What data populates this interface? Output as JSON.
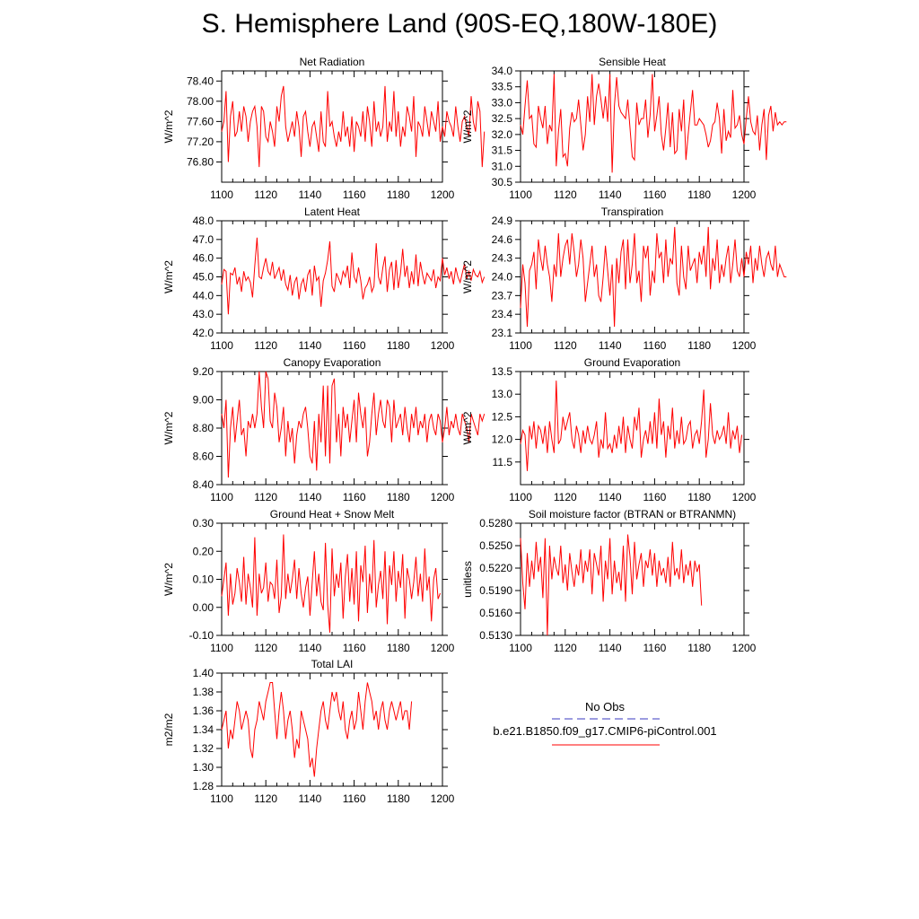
{
  "title": "S. Hemisphere Land (90S-EQ,180W-180E)",
  "legend": {
    "obs_label": "No Obs",
    "obs_color": "#3a3ac0",
    "model_label": "b.e21.B1850.f09_g17.CMIP6-piControl.001",
    "model_color": "#ff0000"
  },
  "chart_data": [
    {
      "type": "line",
      "title": "Net Radiation",
      "ylabel": "W/m^2",
      "xlim": [
        1100,
        1200
      ],
      "ylim": [
        76.4,
        78.6
      ],
      "yticks": [
        "76.80",
        "77.20",
        "77.60",
        "78.00",
        "78.40"
      ],
      "xticks": [
        "1100",
        "1120",
        "1140",
        "1160",
        "1180",
        "1200"
      ],
      "x_start": 1100,
      "x_step": 1,
      "values": [
        77.4,
        77.6,
        78.2,
        76.8,
        77.7,
        78.0,
        77.3,
        77.4,
        77.8,
        77.4,
        77.9,
        77.7,
        77.2,
        77.6,
        77.8,
        77.9,
        77.5,
        76.7,
        77.9,
        77.8,
        77.3,
        77.2,
        77.6,
        77.4,
        77.1,
        77.9,
        77.6,
        78.1,
        78.3,
        77.5,
        77.2,
        77.4,
        77.6,
        77.3,
        77.8,
        77.5,
        76.9,
        77.7,
        77.8,
        77.4,
        77.1,
        77.5,
        77.6,
        77.3,
        77.0,
        77.8,
        77.2,
        77.1,
        78.2,
        77.5,
        77.6,
        77.3,
        77.1,
        77.4,
        77.2,
        77.8,
        77.3,
        77.5,
        77.1,
        77.7,
        77.0,
        77.6,
        77.5,
        77.3,
        77.8,
        77.2,
        77.9,
        77.6,
        77.1,
        78.0,
        77.4,
        77.6,
        77.3,
        77.5,
        78.3,
        77.2,
        77.6,
        77.4,
        78.2,
        77.3,
        77.8,
        77.1,
        77.5,
        77.3,
        77.9,
        77.7,
        77.4,
        78.1,
        76.9,
        77.6,
        77.5,
        77.3,
        77.9,
        77.6,
        77.3,
        77.8,
        77.6,
        77.4,
        78.0,
        77.2,
        77.5,
        77.3,
        77.8,
        77.6,
        77.5,
        77.3,
        77.9,
        77.5,
        77.2,
        77.6,
        77.7,
        77.5,
        77.3,
        78.1,
        77.6,
        77.4,
        78.0,
        77.8,
        76.7,
        77.4
      ]
    },
    {
      "type": "line",
      "title": "Sensible Heat",
      "ylabel": "W/m^2",
      "xlim": [
        1100,
        1200
      ],
      "ylim": [
        30.5,
        34.0
      ],
      "yticks": [
        "30.5",
        "31.0",
        "31.5",
        "32.0",
        "32.5",
        "33.0",
        "33.5",
        "34.0"
      ],
      "xticks": [
        "1100",
        "1120",
        "1140",
        "1160",
        "1180",
        "1200"
      ],
      "x_start": 1100,
      "x_step": 1,
      "values": [
        32.3,
        32.0,
        32.9,
        33.7,
        32.5,
        32.6,
        31.7,
        31.6,
        32.9,
        32.5,
        32.2,
        32.9,
        31.7,
        32.3,
        32.1,
        33.9,
        31.0,
        32.1,
        32.8,
        31.3,
        31.4,
        31.0,
        32.2,
        32.7,
        32.4,
        32.5,
        33.1,
        32.3,
        31.5,
        32.0,
        33.2,
        32.4,
        33.9,
        32.3,
        33.2,
        33.6,
        33.1,
        32.5,
        33.2,
        32.4,
        33.9,
        30.8,
        32.9,
        33.8,
        32.9,
        32.7,
        32.6,
        32.5,
        33.1,
        32.2,
        31.3,
        31.2,
        33.0,
        32.3,
        32.5,
        32.5,
        33.1,
        31.9,
        32.6,
        33.9,
        32.1,
        32.6,
        33.2,
        32.0,
        31.5,
        32.2,
        33.0,
        31.6,
        32.7,
        31.4,
        31.5,
        32.8,
        32.1,
        33.1,
        31.2,
        32.0,
        32.7,
        33.4,
        32.3,
        32.3,
        32.5,
        32.4,
        32.3,
        32.0,
        31.6,
        31.8,
        32.3,
        32.4,
        33.0,
        32.5,
        31.4,
        32.8,
        31.8,
        32.1,
        31.9,
        33.4,
        32.2,
        32.3,
        32.6,
        32.0,
        31.7,
        32.5,
        33.2,
        32.4,
        32.1,
        32.0,
        32.6,
        31.5,
        32.3,
        32.8,
        31.2,
        32.6,
        32.9,
        32.1,
        32.7,
        32.3,
        32.4,
        32.3,
        32.4,
        32.4
      ]
    },
    {
      "type": "line",
      "title": "Latent Heat",
      "ylabel": "W/m^2",
      "xlim": [
        1100,
        1200
      ],
      "ylim": [
        42.0,
        48.0
      ],
      "yticks": [
        "42.0",
        "43.0",
        "44.0",
        "45.0",
        "46.0",
        "47.0",
        "48.0"
      ],
      "xticks": [
        "1100",
        "1120",
        "1140",
        "1160",
        "1180",
        "1200"
      ],
      "x_start": 1100,
      "x_step": 1,
      "values": [
        44.6,
        45.4,
        45.3,
        43.0,
        45.2,
        45.1,
        45.5,
        44.6,
        45.0,
        44.2,
        45.3,
        44.8,
        45.0,
        44.7,
        43.9,
        45.6,
        47.1,
        45.0,
        44.9,
        45.5,
        46.0,
        45.3,
        45.1,
        45.8,
        44.9,
        45.2,
        45.5,
        44.8,
        45.4,
        44.6,
        44.3,
        45.1,
        44.0,
        44.7,
        45.0,
        43.8,
        44.6,
        44.9,
        44.2,
        45.1,
        45.4,
        44.0,
        45.6,
        44.8,
        45.0,
        43.4,
        44.8,
        45.2,
        45.9,
        46.9,
        44.5,
        44.2,
        45.2,
        44.9,
        44.6,
        45.3,
        45.0,
        45.6,
        44.4,
        46.3,
        45.0,
        44.7,
        45.5,
        44.8,
        43.8,
        44.4,
        44.6,
        45.0,
        44.2,
        44.5,
        46.8,
        45.0,
        44.6,
        45.5,
        46.1,
        44.2,
        45.4,
        45.8,
        44.3,
        45.9,
        44.4,
        45.2,
        46.5,
        45.0,
        45.6,
        44.4,
        45.3,
        44.6,
        46.2,
        44.5,
        45.8,
        45.1,
        44.6,
        45.2,
        45.0,
        44.8,
        45.4,
        44.4,
        45.0,
        44.8,
        46.0,
        45.1,
        45.5,
        44.9,
        45.3,
        44.6,
        45.5,
        45.0,
        44.7,
        45.2,
        45.7,
        44.9,
        45.3,
        44.8,
        45.4,
        45.1,
        45.0,
        45.3,
        44.7,
        45.0
      ]
    },
    {
      "type": "line",
      "title": "Transpiration",
      "ylabel": "W/m^2",
      "xlim": [
        1100,
        1200
      ],
      "ylim": [
        23.1,
        24.9
      ],
      "yticks": [
        "23.1",
        "23.4",
        "23.7",
        "24.0",
        "24.3",
        "24.6",
        "24.9"
      ],
      "xticks": [
        "1100",
        "1120",
        "1140",
        "1160",
        "1180",
        "1200"
      ],
      "x_start": 1100,
      "x_step": 1,
      "values": [
        23.5,
        24.2,
        23.9,
        23.2,
        24.1,
        24.2,
        24.4,
        23.8,
        24.6,
        24.3,
        24.1,
        24.5,
        24.2,
        24.0,
        23.6,
        24.2,
        24.0,
        24.7,
        24.0,
        24.3,
        24.5,
        24.6,
        24.2,
        24.7,
        24.4,
        24.0,
        24.2,
        24.6,
        24.3,
        23.6,
        23.9,
        24.2,
        24.5,
        24.0,
        24.2,
        23.7,
        23.6,
        24.0,
        24.5,
        24.1,
        23.7,
        24.2,
        23.2,
        24.3,
        23.9,
        24.4,
        24.6,
        23.8,
        24.6,
        23.9,
        24.2,
        24.7,
        23.9,
        24.1,
        23.6,
        24.5,
        24.3,
        24.5,
        23.7,
        24.1,
        23.9,
        24.7,
        24.3,
        24.4,
        23.9,
        24.6,
        24.0,
        24.3,
        24.2,
        24.8,
        23.9,
        23.7,
        24.5,
        24.0,
        23.8,
        24.5,
        24.1,
        24.2,
        24.3,
        23.9,
        24.4,
        24.2,
        24.5,
        24.0,
        24.8,
        23.8,
        24.3,
        24.1,
        24.6,
        23.9,
        24.2,
        24.0,
        24.3,
        24.5,
        23.9,
        24.2,
        24.6,
        24.1,
        24.0,
        24.3,
        24.0,
        24.4,
        24.2,
        24.5,
        23.9,
        24.3,
        24.1,
        24.5,
        24.2,
        24.0,
        24.3,
        24.4,
        24.2,
        24.1,
        24.5,
        24.0,
        24.2,
        24.1,
        24.0,
        24.0
      ]
    },
    {
      "type": "line",
      "title": "Canopy Evaporation",
      "ylabel": "W/m^2",
      "xlim": [
        1100,
        1200
      ],
      "ylim": [
        8.4,
        9.2
      ],
      "yticks": [
        "8.40",
        "8.60",
        "8.80",
        "9.00",
        "9.20"
      ],
      "xticks": [
        "1100",
        "1120",
        "1140",
        "1160",
        "1180",
        "1200"
      ],
      "x_start": 1100,
      "x_step": 1,
      "values": [
        8.9,
        8.8,
        9.0,
        8.45,
        8.8,
        8.95,
        8.7,
        8.85,
        9.0,
        8.75,
        8.8,
        8.6,
        8.85,
        8.8,
        8.9,
        8.8,
        8.9,
        9.2,
        8.95,
        8.8,
        9.2,
        9.15,
        8.85,
        8.8,
        9.05,
        8.95,
        8.7,
        8.8,
        8.95,
        8.6,
        8.85,
        8.7,
        8.8,
        8.55,
        8.75,
        8.85,
        8.8,
        8.9,
        8.95,
        8.8,
        8.6,
        8.55,
        8.85,
        8.5,
        8.9,
        8.7,
        9.1,
        8.6,
        9.1,
        8.55,
        9.1,
        9.15,
        8.7,
        8.9,
        8.6,
        8.95,
        8.8,
        8.9,
        8.7,
        8.85,
        9.0,
        8.7,
        9.05,
        8.9,
        8.8,
        8.95,
        8.6,
        8.7,
        8.9,
        9.05,
        8.75,
        8.9,
        9.0,
        8.85,
        8.8,
        9.0,
        8.95,
        8.7,
        9.0,
        8.8,
        8.85,
        8.9,
        8.75,
        8.95,
        8.8,
        8.7,
        8.9,
        8.8,
        8.95,
        8.75,
        8.85,
        8.8,
        8.9,
        8.7,
        8.85,
        8.9,
        8.8,
        8.75,
        8.9,
        8.85,
        8.7,
        8.8,
        8.95,
        8.75,
        8.85,
        8.8,
        8.9,
        8.8,
        8.75,
        8.9,
        8.85,
        8.8,
        8.7,
        8.9,
        8.85,
        8.8,
        8.75,
        8.9,
        8.85,
        8.9
      ]
    },
    {
      "type": "line",
      "title": "Ground Evaporation",
      "ylabel": "W/m^2",
      "xlim": [
        1100,
        1200
      ],
      "ylim": [
        11.0,
        13.5
      ],
      "yticks": [
        "11.5",
        "12.0",
        "12.5",
        "13.0",
        "13.5"
      ],
      "xticks": [
        "1100",
        "1120",
        "1140",
        "1160",
        "1180",
        "1200"
      ],
      "x_start": 1100,
      "x_step": 1,
      "values": [
        11.9,
        12.2,
        12.1,
        11.3,
        12.3,
        12.0,
        12.4,
        11.8,
        12.3,
        12.2,
        11.9,
        12.3,
        11.7,
        12.4,
        12.0,
        11.7,
        13.3,
        11.9,
        12.0,
        12.5,
        12.2,
        12.4,
        12.6,
        12.0,
        11.8,
        12.3,
        12.1,
        11.7,
        12.2,
        11.9,
        12.3,
        12.0,
        11.9,
        12.1,
        12.4,
        11.6,
        12.0,
        11.8,
        12.6,
        11.8,
        11.9,
        11.7,
        12.1,
        11.8,
        12.3,
        11.9,
        12.5,
        11.7,
        12.3,
        12.0,
        11.8,
        12.5,
        12.2,
        12.7,
        11.6,
        12.0,
        12.2,
        11.9,
        12.4,
        11.9,
        12.6,
        11.8,
        12.9,
        12.1,
        12.4,
        11.6,
        12.3,
        12.0,
        12.7,
        11.8,
        12.2,
        11.9,
        12.5,
        11.9,
        12.0,
        12.3,
        12.4,
        11.8,
        12.1,
        12.2,
        11.9,
        12.4,
        13.1,
        11.6,
        12.0,
        12.8,
        12.1,
        11.9,
        12.2,
        12.0,
        12.1,
        12.3,
        11.9,
        12.6,
        11.8,
        12.2,
        12.0,
        12.3,
        11.7,
        12.1
      ]
    },
    {
      "type": "line",
      "title": "Ground Heat + Snow Melt",
      "ylabel": "W/m^2",
      "xlim": [
        1100,
        1200
      ],
      "ylim": [
        -0.1,
        0.3
      ],
      "yticks": [
        "-0.10",
        "0.00",
        "0.10",
        "0.20",
        "0.30"
      ],
      "xticks": [
        "1100",
        "1120",
        "1140",
        "1160",
        "1180",
        "1200"
      ],
      "x_start": 1100,
      "x_step": 1,
      "values": [
        0.04,
        0.1,
        0.16,
        -0.03,
        0.12,
        0.01,
        0.05,
        0.14,
        0.09,
        0.02,
        0.18,
        0.01,
        0.12,
        0.07,
        0.0,
        0.25,
        -0.03,
        0.12,
        0.05,
        0.07,
        0.16,
        0.02,
        0.09,
        0.08,
        0.03,
        0.17,
        -0.02,
        0.04,
        0.26,
        0.03,
        0.12,
        0.05,
        0.1,
        0.17,
        0.03,
        0.14,
        0.05,
        0.0,
        0.07,
        0.11,
        -0.03,
        0.09,
        0.2,
        0.04,
        0.12,
        0.02,
        -0.01,
        0.23,
        0.01,
        -0.09,
        0.21,
        0.04,
        0.12,
        0.07,
        0.16,
        -0.04,
        0.11,
        0.19,
        0.02,
        0.14,
        0.01,
        0.2,
        -0.05,
        0.15,
        0.09,
        0.22,
        -0.02,
        0.12,
        0.05,
        0.24,
        0.0,
        0.08,
        0.13,
        0.03,
        0.2,
        -0.06,
        0.15,
        0.08,
        0.2,
        0.02,
        0.13,
        0.07,
        0.19,
        -0.04,
        0.14,
        0.1,
        0.03,
        0.09,
        0.18,
        0.04,
        0.12,
        0.02,
        0.21,
        0.06,
        0.11,
        -0.05,
        0.1,
        0.14,
        0.03,
        0.05
      ]
    },
    {
      "type": "line",
      "title": "Soil moisture factor (BTRAN or BTRANMN)",
      "ylabel": "unitless",
      "xlim": [
        1100,
        1200
      ],
      "ylim": [
        0.513,
        0.528
      ],
      "yticks": [
        "0.5130",
        "0.5160",
        "0.5190",
        "0.5220",
        "0.5250",
        "0.5280"
      ],
      "xticks": [
        "1100",
        "1120",
        "1140",
        "1160",
        "1180",
        "1200"
      ],
      "x_start": 1100,
      "x_step": 1,
      "values": [
        0.526,
        0.52,
        0.5165,
        0.524,
        0.5195,
        0.523,
        0.5205,
        0.5255,
        0.5215,
        0.5235,
        0.518,
        0.526,
        0.513,
        0.525,
        0.5205,
        0.5235,
        0.522,
        0.521,
        0.525,
        0.52,
        0.5225,
        0.519,
        0.524,
        0.5215,
        0.5195,
        0.5225,
        0.521,
        0.5245,
        0.52,
        0.523,
        0.5215,
        0.5245,
        0.5185,
        0.524,
        0.5225,
        0.521,
        0.525,
        0.5175,
        0.523,
        0.5205,
        0.526,
        0.5185,
        0.523,
        0.52,
        0.5215,
        0.519,
        0.525,
        0.5175,
        0.5265,
        0.5235,
        0.5185,
        0.5255,
        0.5205,
        0.5225,
        0.524,
        0.5195,
        0.523,
        0.522,
        0.5245,
        0.521,
        0.524,
        0.5195,
        0.523,
        0.521,
        0.522,
        0.52,
        0.5235,
        0.5195,
        0.5255,
        0.521,
        0.522,
        0.5205,
        0.5245,
        0.52,
        0.5225,
        0.521,
        0.523,
        0.5195,
        0.523,
        0.5215,
        0.5225,
        0.517
      ]
    },
    {
      "type": "line",
      "title": "Total LAI",
      "ylabel": "m2/m2",
      "xlim": [
        1100,
        1200
      ],
      "ylim": [
        1.28,
        1.4
      ],
      "yticks": [
        "1.28",
        "1.30",
        "1.32",
        "1.34",
        "1.36",
        "1.38",
        "1.40"
      ],
      "xticks": [
        "1100",
        "1120",
        "1140",
        "1160",
        "1180",
        "1200"
      ],
      "x_start": 1100,
      "x_step": 1,
      "values": [
        1.34,
        1.35,
        1.36,
        1.32,
        1.34,
        1.33,
        1.35,
        1.37,
        1.36,
        1.34,
        1.35,
        1.36,
        1.35,
        1.32,
        1.31,
        1.34,
        1.35,
        1.37,
        1.36,
        1.35,
        1.37,
        1.38,
        1.39,
        1.39,
        1.36,
        1.33,
        1.36,
        1.38,
        1.36,
        1.33,
        1.35,
        1.36,
        1.34,
        1.31,
        1.33,
        1.32,
        1.36,
        1.35,
        1.34,
        1.33,
        1.3,
        1.31,
        1.29,
        1.32,
        1.34,
        1.36,
        1.37,
        1.35,
        1.34,
        1.36,
        1.38,
        1.37,
        1.38,
        1.36,
        1.35,
        1.37,
        1.34,
        1.33,
        1.35,
        1.36,
        1.34,
        1.35,
        1.38,
        1.36,
        1.34,
        1.37,
        1.39,
        1.38,
        1.37,
        1.35,
        1.36,
        1.34,
        1.36,
        1.37,
        1.35,
        1.34,
        1.36,
        1.37,
        1.36,
        1.35,
        1.36,
        1.37,
        1.35,
        1.36,
        1.36,
        1.34,
        1.37
      ]
    }
  ]
}
